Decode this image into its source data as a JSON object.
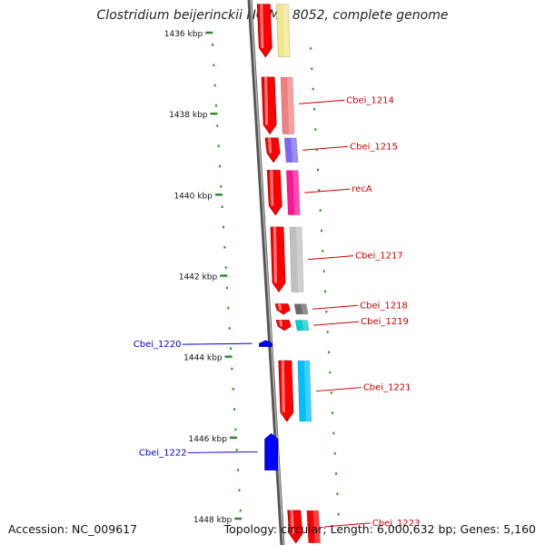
{
  "title": "Clostridium beijerinckii NCIMB 8052, complete genome",
  "footer": {
    "accession": "Accession: NC_009617",
    "summary": "Topology: circular; Length: 6,000,632 bp; Genes: 5,160"
  },
  "colors": {
    "strand": "#ff0000",
    "backbone": "#888888",
    "tick": "#2e8b2e",
    "label_forward": "#cc0000",
    "label_reverse": "#0000cc",
    "reverse_gene": "#0000ff"
  },
  "scale": {
    "unit": "kbp",
    "ticks": [
      "1436 kbp",
      "1438 kbp",
      "1440 kbp",
      "1442 kbp",
      "1444 kbp",
      "1446 kbp",
      "1448 kbp"
    ]
  },
  "genes": [
    {
      "label": "",
      "start": 1435.3,
      "end": 1436.6,
      "color": "#f0e68c"
    },
    {
      "label": "Cbei_1214",
      "start": 1437.1,
      "end": 1438.5,
      "color": "#f08080"
    },
    {
      "label": "Cbei_1215",
      "start": 1438.6,
      "end": 1439.2,
      "color": "#7b68ee"
    },
    {
      "label": "recA",
      "start": 1439.4,
      "end": 1440.5,
      "color": "#ff1493"
    },
    {
      "label": "Cbei_1217",
      "start": 1440.8,
      "end": 1442.4,
      "color": "#c0c0c0"
    },
    {
      "label": "Cbei_1218",
      "start": 1442.7,
      "end": 1442.95,
      "color": "#696969"
    },
    {
      "label": "Cbei_1219",
      "start": 1443.1,
      "end": 1443.35,
      "color": "#00ced1"
    },
    {
      "label": "Cbei_1221",
      "start": 1444.1,
      "end": 1445.6,
      "color": "#00bfff"
    },
    {
      "label": "Cbei_1223",
      "start": 1447.8,
      "end": 1448.6,
      "color": "#ff0000"
    }
  ],
  "reverse_genes": [
    {
      "label": "Cbei_1220",
      "start": 1443.6,
      "end": 1443.75
    },
    {
      "label": "Cbei_1222",
      "start": 1445.9,
      "end": 1446.8
    }
  ]
}
